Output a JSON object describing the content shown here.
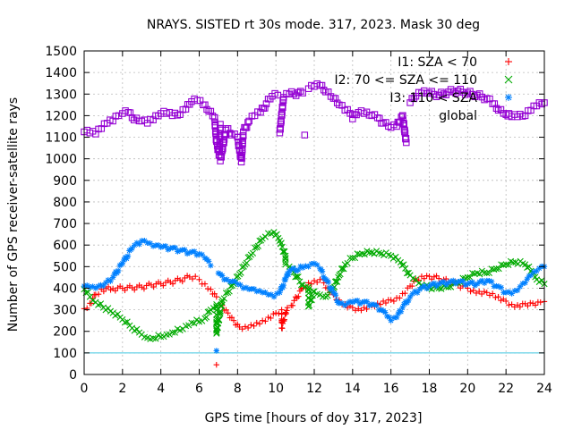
{
  "chart_data": {
    "type": "scatter",
    "title": "NRAYS. SISTED rt 30s mode. 317, 2023. Mask 30 deg",
    "xlabel": "GPS time [hours of doy 317, 2023]",
    "ylabel": "Number of GPS receiver-satellite rays",
    "xlim": [
      0,
      24
    ],
    "ylim": [
      0,
      1500
    ],
    "x_ticks": [
      0,
      2,
      4,
      6,
      8,
      10,
      12,
      14,
      16,
      18,
      20,
      22,
      24
    ],
    "y_ticks": [
      0,
      100,
      200,
      300,
      400,
      500,
      600,
      700,
      800,
      900,
      1000,
      1100,
      1200,
      1300,
      1400,
      1500
    ],
    "grid": true,
    "reference_line": {
      "y": 100,
      "color": "#40c8e0"
    },
    "legend_position": "top-right",
    "series": [
      {
        "name": "I1: SZA < 70",
        "marker": "+",
        "color": "#ff0000",
        "points": [
          [
            0,
            305
          ],
          [
            0.3,
            330
          ],
          [
            0.6,
            370
          ],
          [
            0.9,
            395
          ],
          [
            1.5,
            398
          ],
          [
            2,
            400
          ],
          [
            2.5,
            402
          ],
          [
            3,
            405
          ],
          [
            3.5,
            415
          ],
          [
            4,
            420
          ],
          [
            4.5,
            428
          ],
          [
            5,
            438
          ],
          [
            5.5,
            452
          ],
          [
            5.8,
            455
          ],
          [
            6,
            440
          ],
          [
            6.3,
            420
          ],
          [
            6.6,
            395
          ],
          [
            6.9,
            360
          ],
          [
            7.2,
            320
          ],
          [
            7.5,
            285
          ],
          [
            7.8,
            250
          ],
          [
            8.1,
            220
          ],
          [
            8.4,
            222
          ],
          [
            8.7,
            230
          ],
          [
            9,
            240
          ],
          [
            9.3,
            250
          ],
          [
            9.6,
            265
          ],
          [
            10,
            285
          ],
          [
            10.3,
            300
          ],
          [
            10.6,
            310
          ],
          [
            10.8,
            320
          ],
          [
            11.4,
            400
          ],
          [
            11.7,
            425
          ],
          [
            12,
            435
          ],
          [
            12.3,
            440
          ],
          [
            12.5,
            425
          ],
          [
            12.7,
            400
          ],
          [
            13,
            370
          ],
          [
            13.3,
            345
          ],
          [
            13.6,
            325
          ],
          [
            14,
            310
          ],
          [
            14.3,
            305
          ],
          [
            14.6,
            310
          ],
          [
            15,
            320
          ],
          [
            15.3,
            330
          ],
          [
            15.6,
            340
          ],
          [
            16,
            345
          ],
          [
            16.3,
            355
          ],
          [
            16.6,
            375
          ],
          [
            17,
            410
          ],
          [
            17.3,
            440
          ],
          [
            17.6,
            455
          ],
          [
            18,
            455
          ],
          [
            18.5,
            445
          ],
          [
            19,
            430
          ],
          [
            19.5,
            415
          ],
          [
            20,
            400
          ],
          [
            20.3,
            390
          ],
          [
            20.6,
            385
          ],
          [
            21,
            380
          ],
          [
            21.3,
            375
          ],
          [
            21.6,
            360
          ],
          [
            22,
            340
          ],
          [
            22.3,
            325
          ],
          [
            22.6,
            322
          ],
          [
            23,
            328
          ],
          [
            23.4,
            330
          ],
          [
            23.8,
            335
          ],
          [
            24,
            338
          ],
          [
            6.9,
            45
          ],
          [
            10.3,
            215
          ]
        ]
      },
      {
        "name": "I2: 70 <= SZA <= 110",
        "marker": "x",
        "color": "#00aa00",
        "points": [
          [
            0,
            395
          ],
          [
            0.3,
            360
          ],
          [
            0.6,
            335
          ],
          [
            1,
            310
          ],
          [
            1.5,
            285
          ],
          [
            2,
            255
          ],
          [
            2.5,
            215
          ],
          [
            3,
            185
          ],
          [
            3.3,
            170
          ],
          [
            3.6,
            168
          ],
          [
            4,
            175
          ],
          [
            4.3,
            185
          ],
          [
            4.6,
            195
          ],
          [
            5,
            205
          ],
          [
            5.3,
            225
          ],
          [
            5.6,
            240
          ],
          [
            6,
            245
          ],
          [
            6.3,
            260
          ],
          [
            6.6,
            300
          ],
          [
            6.9,
            325
          ],
          [
            7.2,
            345
          ],
          [
            7.5,
            380
          ],
          [
            7.8,
            420
          ],
          [
            8.1,
            465
          ],
          [
            8.4,
            510
          ],
          [
            8.7,
            555
          ],
          [
            9,
            590
          ],
          [
            9.3,
            630
          ],
          [
            9.6,
            655
          ],
          [
            9.9,
            660
          ],
          [
            10.2,
            620
          ],
          [
            10.5,
            550
          ],
          [
            10.7,
            500
          ],
          [
            11.4,
            415
          ],
          [
            11.7,
            405
          ],
          [
            12,
            385
          ],
          [
            12.3,
            370
          ],
          [
            12.6,
            360
          ],
          [
            13,
            400
          ],
          [
            13.3,
            460
          ],
          [
            13.6,
            510
          ],
          [
            14,
            540
          ],
          [
            14.5,
            560
          ],
          [
            15,
            565
          ],
          [
            15.5,
            560
          ],
          [
            16,
            550
          ],
          [
            16.5,
            520
          ],
          [
            17,
            460
          ],
          [
            17.3,
            440
          ],
          [
            17.6,
            415
          ],
          [
            18,
            400
          ],
          [
            18.5,
            400
          ],
          [
            19,
            405
          ],
          [
            19.5,
            425
          ],
          [
            20,
            450
          ],
          [
            20.5,
            470
          ],
          [
            21,
            470
          ],
          [
            21.5,
            490
          ],
          [
            22,
            510
          ],
          [
            22.5,
            520
          ],
          [
            23,
            510
          ],
          [
            23.3,
            480
          ],
          [
            23.6,
            440
          ],
          [
            24,
            420
          ],
          [
            6.9,
            190
          ],
          [
            11.7,
            315
          ],
          [
            10.5,
            510
          ]
        ]
      },
      {
        "name": "I3: 110 < SZA",
        "marker": "*",
        "color": "#0080ff",
        "points": [
          [
            0,
            410
          ],
          [
            0.3,
            405
          ],
          [
            0.6,
            400
          ],
          [
            1,
            410
          ],
          [
            1.5,
            450
          ],
          [
            2,
            515
          ],
          [
            2.5,
            585
          ],
          [
            3,
            620
          ],
          [
            3.3,
            610
          ],
          [
            3.6,
            595
          ],
          [
            4,
            590
          ],
          [
            4.5,
            585
          ],
          [
            5,
            575
          ],
          [
            5.5,
            565
          ],
          [
            6,
            560
          ],
          [
            6.3,
            540
          ],
          [
            6.6,
            505
          ],
          [
            7,
            470
          ],
          [
            7.3,
            440
          ],
          [
            7.6,
            430
          ],
          [
            8,
            420
          ],
          [
            8.3,
            400
          ],
          [
            8.6,
            395
          ],
          [
            9,
            385
          ],
          [
            9.3,
            380
          ],
          [
            9.6,
            370
          ],
          [
            9.9,
            360
          ],
          [
            10.2,
            380
          ],
          [
            10.5,
            440
          ],
          [
            10.7,
            480
          ],
          [
            11.4,
            495
          ],
          [
            11.7,
            500
          ],
          [
            12,
            515
          ],
          [
            12.3,
            490
          ],
          [
            12.6,
            440
          ],
          [
            13,
            380
          ],
          [
            13.3,
            330
          ],
          [
            13.6,
            320
          ],
          [
            14,
            335
          ],
          [
            14.5,
            335
          ],
          [
            15,
            325
          ],
          [
            15.5,
            300
          ],
          [
            15.8,
            270
          ],
          [
            16,
            250
          ],
          [
            16.3,
            265
          ],
          [
            16.6,
            310
          ],
          [
            17,
            360
          ],
          [
            17.5,
            395
          ],
          [
            18,
            410
          ],
          [
            18.5,
            420
          ],
          [
            19,
            425
          ],
          [
            19.5,
            430
          ],
          [
            20,
            420
          ],
          [
            20.5,
            420
          ],
          [
            21,
            435
          ],
          [
            21.5,
            410
          ],
          [
            22,
            380
          ],
          [
            22.3,
            375
          ],
          [
            22.6,
            390
          ],
          [
            23,
            425
          ],
          [
            23.3,
            460
          ],
          [
            23.6,
            480
          ],
          [
            24,
            500
          ],
          [
            6.9,
            110
          ]
        ]
      },
      {
        "name": "global",
        "marker": "square",
        "color": "#9400d3",
        "points": [
          [
            0,
            1125
          ],
          [
            0.3,
            1120
          ],
          [
            0.6,
            1115
          ],
          [
            0.9,
            1140
          ],
          [
            1.2,
            1165
          ],
          [
            1.5,
            1175
          ],
          [
            1.8,
            1200
          ],
          [
            2,
            1210
          ],
          [
            2.3,
            1215
          ],
          [
            2.6,
            1180
          ],
          [
            3,
            1175
          ],
          [
            3.3,
            1165
          ],
          [
            3.6,
            1180
          ],
          [
            4,
            1210
          ],
          [
            4.3,
            1210
          ],
          [
            4.6,
            1200
          ],
          [
            5,
            1205
          ],
          [
            5.3,
            1230
          ],
          [
            5.6,
            1265
          ],
          [
            5.9,
            1270
          ],
          [
            6.2,
            1250
          ],
          [
            6.5,
            1220
          ],
          [
            6.8,
            1190
          ],
          [
            7.1,
            1160
          ],
          [
            7.4,
            1140
          ],
          [
            7.7,
            1110
          ],
          [
            8,
            1100
          ],
          [
            8.3,
            1125
          ],
          [
            8.6,
            1175
          ],
          [
            8.9,
            1200
          ],
          [
            9.2,
            1215
          ],
          [
            9.5,
            1255
          ],
          [
            9.8,
            1290
          ],
          [
            10.1,
            1295
          ],
          [
            10.4,
            1285
          ],
          [
            10.7,
            1300
          ],
          [
            11.4,
            1305
          ],
          [
            11.7,
            1325
          ],
          [
            12,
            1335
          ],
          [
            12.3,
            1340
          ],
          [
            12.6,
            1310
          ],
          [
            13,
            1280
          ],
          [
            13.3,
            1250
          ],
          [
            13.6,
            1225
          ],
          [
            14,
            1205
          ],
          [
            14.3,
            1215
          ],
          [
            14.6,
            1210
          ],
          [
            15,
            1200
          ],
          [
            15.3,
            1190
          ],
          [
            15.6,
            1165
          ],
          [
            16,
            1145
          ],
          [
            16.3,
            1150
          ],
          [
            16.6,
            1200
          ],
          [
            17,
            1260
          ],
          [
            17.3,
            1290
          ],
          [
            17.6,
            1305
          ],
          [
            18,
            1305
          ],
          [
            18.5,
            1295
          ],
          [
            19,
            1310
          ],
          [
            19.5,
            1315
          ],
          [
            20,
            1305
          ],
          [
            20.5,
            1295
          ],
          [
            21,
            1280
          ],
          [
            21.3,
            1255
          ],
          [
            21.6,
            1225
          ],
          [
            22,
            1205
          ],
          [
            22.3,
            1195
          ],
          [
            22.6,
            1195
          ],
          [
            23,
            1200
          ],
          [
            23.3,
            1225
          ],
          [
            23.6,
            1245
          ],
          [
            24,
            1260
          ],
          [
            6.9,
            1080
          ],
          [
            7.05,
            1015
          ],
          [
            7.1,
            990
          ],
          [
            8.1,
            1040
          ],
          [
            8.15,
            1010
          ],
          [
            8.2,
            985
          ],
          [
            10.2,
            1120
          ],
          [
            11.5,
            1110
          ],
          [
            16.8,
            1075
          ],
          [
            14,
            1185
          ],
          [
            15.5,
            1165
          ]
        ]
      }
    ]
  }
}
